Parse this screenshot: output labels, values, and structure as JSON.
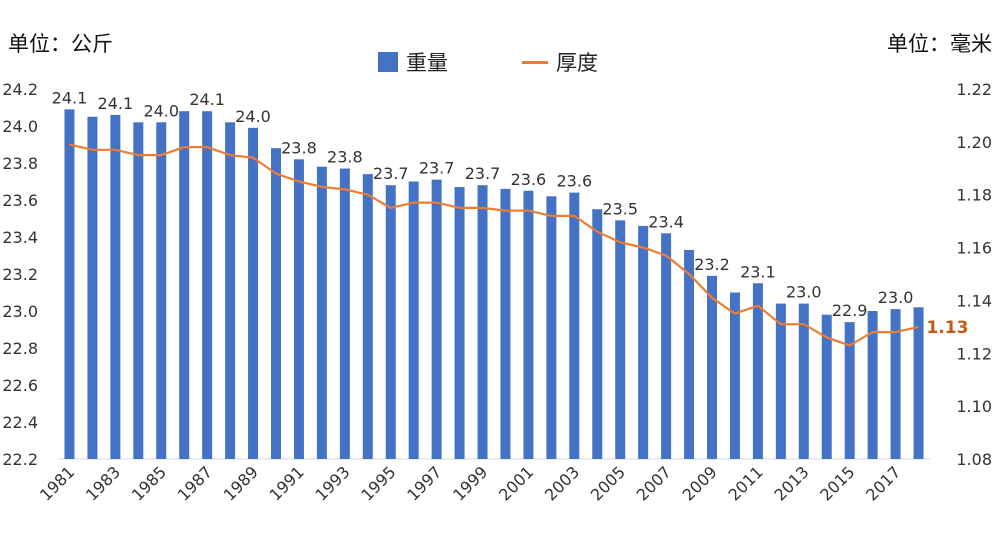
{
  "units": {
    "left": "单位：公斤",
    "right": "单位：毫米"
  },
  "colors": {
    "bar": "#4472C4",
    "line": "#ED7D31",
    "line_label": "#C55A11",
    "grid": "#D9D9D9"
  },
  "chart_data": {
    "type": "bar",
    "title": "",
    "x": [
      1981,
      1982,
      1983,
      1984,
      1985,
      1986,
      1987,
      1988,
      1989,
      1990,
      1991,
      1992,
      1993,
      1994,
      1995,
      1996,
      1997,
      1998,
      1999,
      2000,
      2001,
      2002,
      2003,
      2004,
      2005,
      2006,
      2007,
      2008,
      2009,
      2010,
      2011,
      2012,
      2013,
      2014,
      2015,
      2016,
      2017,
      2018
    ],
    "x_tick_labels": [
      "1981",
      "1983",
      "1985",
      "1987",
      "1989",
      "1991",
      "1993",
      "1995",
      "1997",
      "1999",
      "2001",
      "2003",
      "2005",
      "2007",
      "2009",
      "2011",
      "2013",
      "2015",
      "2017"
    ],
    "legend_placement": "top-center",
    "series": [
      {
        "name": "重量",
        "type": "bar",
        "axis": "left",
        "values": [
          24.09,
          24.05,
          24.06,
          24.02,
          24.02,
          24.08,
          24.08,
          24.02,
          23.99,
          23.88,
          23.82,
          23.78,
          23.77,
          23.74,
          23.68,
          23.7,
          23.71,
          23.67,
          23.68,
          23.66,
          23.65,
          23.62,
          23.64,
          23.55,
          23.49,
          23.46,
          23.42,
          23.33,
          23.19,
          23.1,
          23.15,
          23.04,
          23.04,
          22.98,
          22.94,
          23.0,
          23.01,
          23.02
        ],
        "data_labels": [
          {
            "index": 0,
            "text": "24.1"
          },
          {
            "index": 2,
            "text": "24.1"
          },
          {
            "index": 4,
            "text": "24.0"
          },
          {
            "index": 6,
            "text": "24.1"
          },
          {
            "index": 8,
            "text": "24.0"
          },
          {
            "index": 10,
            "text": "23.8"
          },
          {
            "index": 12,
            "text": "23.8"
          },
          {
            "index": 14,
            "text": "23.7"
          },
          {
            "index": 16,
            "text": "23.7"
          },
          {
            "index": 18,
            "text": "23.7"
          },
          {
            "index": 20,
            "text": "23.6"
          },
          {
            "index": 22,
            "text": "23.6"
          },
          {
            "index": 24,
            "text": "23.5"
          },
          {
            "index": 26,
            "text": "23.4"
          },
          {
            "index": 28,
            "text": "23.2"
          },
          {
            "index": 30,
            "text": "23.1"
          },
          {
            "index": 32,
            "text": "23.0"
          },
          {
            "index": 34,
            "text": "22.9"
          },
          {
            "index": 36,
            "text": "23.0"
          }
        ]
      },
      {
        "name": "厚度",
        "type": "line",
        "axis": "right",
        "values": [
          1.199,
          1.197,
          1.197,
          1.195,
          1.195,
          1.198,
          1.198,
          1.195,
          1.194,
          1.188,
          1.185,
          1.183,
          1.182,
          1.18,
          1.175,
          1.177,
          1.177,
          1.175,
          1.175,
          1.174,
          1.174,
          1.172,
          1.172,
          1.166,
          1.162,
          1.16,
          1.157,
          1.15,
          1.141,
          1.135,
          1.138,
          1.131,
          1.131,
          1.126,
          1.123,
          1.128,
          1.128,
          1.13
        ],
        "end_label": "1.13"
      }
    ],
    "y_left": {
      "min": 22.2,
      "max": 24.2,
      "step": 0.2,
      "tick_labels": [
        "22.2",
        "22.4",
        "22.6",
        "22.8",
        "23.0",
        "23.2",
        "23.4",
        "23.6",
        "23.8",
        "24.0",
        "24.2"
      ]
    },
    "y_right": {
      "min": 1.08,
      "max": 1.22,
      "step": 0.02,
      "tick_labels": [
        "1.08",
        "1.10",
        "1.12",
        "1.14",
        "1.16",
        "1.18",
        "1.20",
        "1.22"
      ]
    },
    "grid": false
  }
}
